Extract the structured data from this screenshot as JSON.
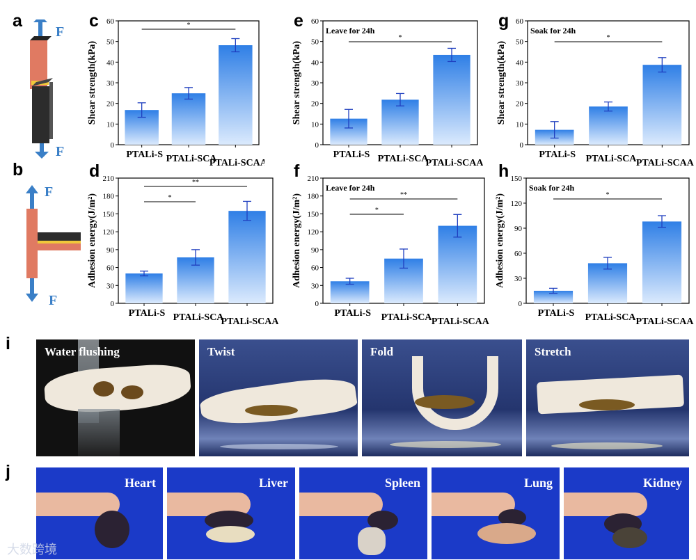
{
  "panel_letters": [
    "a",
    "b",
    "c",
    "d",
    "e",
    "f",
    "g",
    "h",
    "i",
    "j"
  ],
  "schematic": {
    "force_label": "F"
  },
  "chart_data": [
    {
      "id": "c",
      "type": "bar",
      "categories": [
        "PTALi-S",
        "PTALi-SCA",
        "PTALi-SCAA"
      ],
      "values": [
        16.8,
        24.9,
        48.2
      ],
      "errors": [
        3.5,
        2.8,
        3.2
      ],
      "ylabel": "Shear strength(kPa)",
      "ylim": [
        0,
        60
      ],
      "yticks": [
        0,
        10,
        20,
        30,
        40,
        50,
        60
      ],
      "subtitle": "",
      "significance": [
        {
          "from": 0,
          "to": 2,
          "label": "*"
        }
      ]
    },
    {
      "id": "d",
      "type": "bar",
      "categories": [
        "PTALi-S",
        "PTALi-SCA",
        "PTALi-SCAA"
      ],
      "values": [
        50,
        77,
        155
      ],
      "errors": [
        4,
        13,
        16
      ],
      "ylabel": "Adhesion energy(J/m²)",
      "ylim": [
        0,
        210
      ],
      "yticks": [
        0,
        30,
        60,
        90,
        120,
        150,
        180,
        210
      ],
      "subtitle": "",
      "significance": [
        {
          "from": 0,
          "to": 1,
          "label": "*"
        },
        {
          "from": 0,
          "to": 2,
          "label": "**"
        }
      ]
    },
    {
      "id": "e",
      "type": "bar",
      "categories": [
        "PTALi-S",
        "PTALi-SCA",
        "PTALi-SCAA"
      ],
      "values": [
        12.6,
        21.8,
        43.5
      ],
      "errors": [
        4.5,
        3.0,
        3.2
      ],
      "ylabel": "Shear strength(kPa)",
      "ylim": [
        0,
        60
      ],
      "yticks": [
        0,
        10,
        20,
        30,
        40,
        50,
        60
      ],
      "subtitle": "Leave for 24h",
      "significance": [
        {
          "from": 0,
          "to": 2,
          "label": "*"
        }
      ]
    },
    {
      "id": "f",
      "type": "bar",
      "categories": [
        "PTALi-S",
        "PTALi-SCA",
        "PTALi-SCAA"
      ],
      "values": [
        37,
        75,
        130
      ],
      "errors": [
        5,
        16,
        19
      ],
      "ylabel": "Adhesion energy(J/m²)",
      "ylim": [
        0,
        210
      ],
      "yticks": [
        0,
        30,
        60,
        90,
        120,
        150,
        180,
        210
      ],
      "subtitle": "Leave for 24h",
      "significance": [
        {
          "from": 0,
          "to": 1,
          "label": "*"
        },
        {
          "from": 0,
          "to": 2,
          "label": "**"
        }
      ]
    },
    {
      "id": "g",
      "type": "bar",
      "categories": [
        "PTALi-S",
        "PTALi-SCA",
        "PTALi-SCAA"
      ],
      "values": [
        7.2,
        18.5,
        38.7
      ],
      "errors": [
        4.0,
        2.2,
        3.5
      ],
      "ylabel": "Shear strength(kPa)",
      "ylim": [
        0,
        60
      ],
      "yticks": [
        0,
        10,
        20,
        30,
        40,
        50,
        60
      ],
      "subtitle": "Soak for 24h",
      "significance": [
        {
          "from": 0,
          "to": 2,
          "label": "*"
        }
      ]
    },
    {
      "id": "h",
      "type": "bar",
      "categories": [
        "PTALi-S",
        "PTALi-SCA",
        "PTALi-SCAA"
      ],
      "values": [
        15,
        48,
        98
      ],
      "errors": [
        3,
        7,
        7
      ],
      "ylabel": "Adhesion energy(J/m²)",
      "ylim": [
        0,
        150
      ],
      "yticks": [
        0,
        30,
        60,
        90,
        120,
        150
      ],
      "subtitle": "Soak for 24h",
      "significance": [
        {
          "from": 0,
          "to": 2,
          "label": "*"
        }
      ]
    }
  ],
  "photos_i": [
    "Water flushing",
    "Twist",
    "Fold",
    "Stretch"
  ],
  "photos_j": [
    "Heart",
    "Liver",
    "Spleen",
    "Lung",
    "Kidney"
  ],
  "watermark": "大数跨境",
  "colors": {
    "bar_top": "#2f7fe6",
    "bar_bottom": "#dbeafd",
    "error": "#1f3fbf",
    "axis": "#000000"
  }
}
